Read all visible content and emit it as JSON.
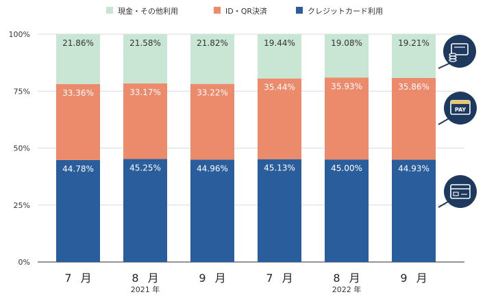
{
  "chart_data": {
    "type": "bar",
    "stacked": true,
    "categories": [
      "7 月",
      "8 月",
      "9 月",
      "7 月",
      "8 月",
      "9 月"
    ],
    "year_groups": [
      {
        "label": "2021 年",
        "under_category_index": 1
      },
      {
        "label": "2022 年",
        "under_category_index": 4
      }
    ],
    "series": [
      {
        "name": "クレジットカード利用",
        "color": "#2a5d9c",
        "values": [
          44.78,
          45.25,
          44.96,
          45.13,
          45.0,
          44.93
        ],
        "labels": [
          "44.78%",
          "45.25%",
          "44.96%",
          "45.13%",
          "45.00%",
          "44.93%"
        ]
      },
      {
        "name": "ID・QR決済",
        "color": "#ec8a6c",
        "values": [
          33.36,
          33.17,
          33.22,
          35.44,
          35.93,
          35.86
        ],
        "labels": [
          "33.36%",
          "33.17%",
          "33.22%",
          "35.44%",
          "35.93%",
          "35.86%"
        ]
      },
      {
        "name": "現金・その他利用",
        "color": "#c9e5d3",
        "values": [
          21.86,
          21.58,
          21.82,
          19.44,
          19.08,
          19.21
        ],
        "labels": [
          "21.86%",
          "21.58%",
          "21.82%",
          "19.44%",
          "19.08%",
          "19.21%"
        ]
      }
    ],
    "legend_order": [
      "現金・その他利用",
      "ID・QR決済",
      "クレジットカード利用"
    ],
    "y_ticks": [
      {
        "value": 0,
        "label": "0%"
      },
      {
        "value": 25,
        "label": "25%"
      },
      {
        "value": 50,
        "label": "50%"
      },
      {
        "value": 75,
        "label": "75%"
      },
      {
        "value": 100,
        "label": "100%"
      }
    ],
    "ylim": [
      0,
      100
    ],
    "legend_position": "top",
    "grid": true
  },
  "icons": {
    "cash": "cash-coins-icon",
    "pay": "pay-card-icon",
    "credit": "credit-card-icon",
    "pay_text": "PAY"
  },
  "colors": {
    "icon_navy": "#1d3a5e",
    "grid": "#d9d9d9",
    "axis": "#555555",
    "label_dark_text": "#333333",
    "label_light_text": "#ffffff"
  }
}
